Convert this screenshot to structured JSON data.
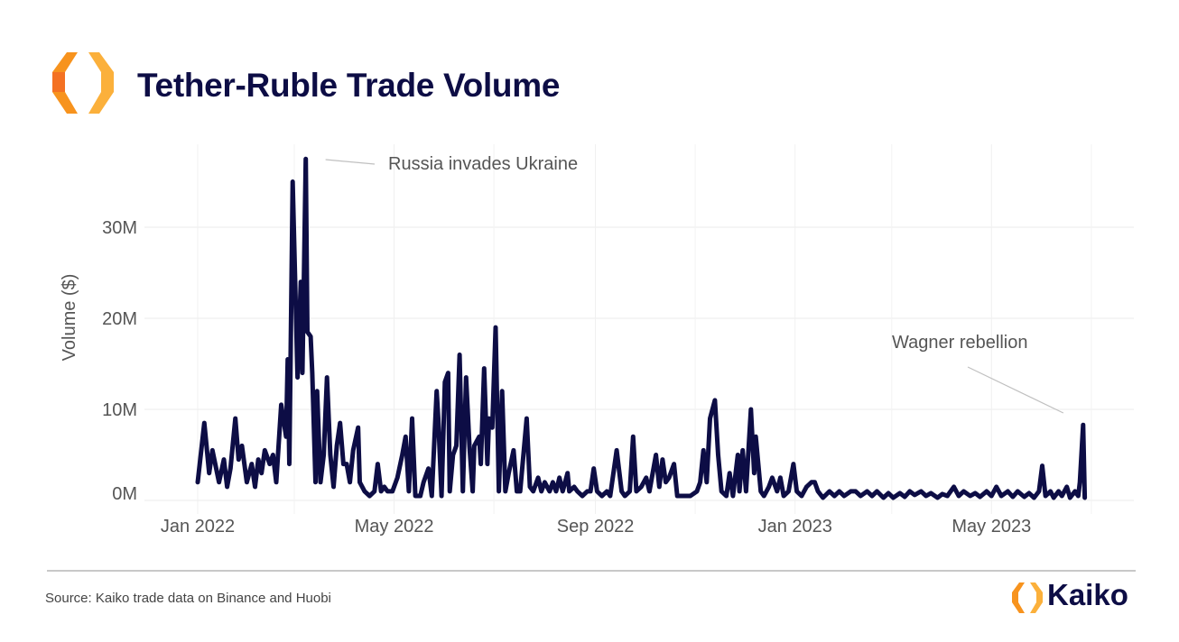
{
  "header": {
    "title": "Tether-Ruble Trade Volume"
  },
  "footer": {
    "source": "Source: Kaiko trade data on Binance and Huobi",
    "brand": "Kaiko"
  },
  "colors": {
    "line": "#0d0d45",
    "title": "#0d0d45",
    "logo_orange": "#f7931e",
    "logo_yellow": "#fbb03b",
    "annotation_line": "#c0c0c0"
  },
  "chart_data": {
    "type": "line",
    "title": "Tether-Ruble Trade Volume",
    "xlabel": "",
    "ylabel": "Volume ($)",
    "ylim": [
      0,
      37.5
    ],
    "y_unit": "M USD",
    "grid": "horizontal",
    "yticks": [
      {
        "value": 0,
        "label": "0M"
      },
      {
        "value": 10,
        "label": "10M"
      },
      {
        "value": 20,
        "label": "20M"
      },
      {
        "value": 30,
        "label": "30M"
      }
    ],
    "xticks": [
      {
        "value": "2022-01-01",
        "label": "Jan 2022"
      },
      {
        "value": "2022-05-01",
        "label": "May 2022"
      },
      {
        "value": "2022-09-01",
        "label": "Sep 2022"
      },
      {
        "value": "2023-01-01",
        "label": "Jan 2023"
      },
      {
        "value": "2023-05-01",
        "label": "May 2023"
      }
    ],
    "annotations": [
      {
        "text": "Russia invades Ukraine",
        "date": "2022-03-08",
        "value": 37.5
      },
      {
        "text": "Wagner rebellion",
        "date": "2023-06-26",
        "value": 8.3
      }
    ],
    "series": [
      {
        "points": [
          [
            "2022-01-01",
            2
          ],
          [
            "2022-01-05",
            8.5
          ],
          [
            "2022-01-08",
            3
          ],
          [
            "2022-01-10",
            5.5
          ],
          [
            "2022-01-14",
            2
          ],
          [
            "2022-01-17",
            4.5
          ],
          [
            "2022-01-19",
            1.5
          ],
          [
            "2022-01-21",
            3.5
          ],
          [
            "2022-01-24",
            9
          ],
          [
            "2022-01-26",
            4.5
          ],
          [
            "2022-01-28",
            6
          ],
          [
            "2022-01-31",
            2
          ],
          [
            "2022-02-03",
            4
          ],
          [
            "2022-02-05",
            1.5
          ],
          [
            "2022-02-07",
            4.5
          ],
          [
            "2022-02-09",
            3
          ],
          [
            "2022-02-11",
            5.5
          ],
          [
            "2022-02-14",
            4
          ],
          [
            "2022-02-16",
            5
          ],
          [
            "2022-02-18",
            2
          ],
          [
            "2022-02-21",
            10.5
          ],
          [
            "2022-02-24",
            7
          ],
          [
            "2022-02-25",
            15.5
          ],
          [
            "2022-02-26",
            4
          ],
          [
            "2022-02-28",
            35
          ],
          [
            "2022-03-03",
            13.5
          ],
          [
            "2022-03-05",
            24
          ],
          [
            "2022-03-06",
            14
          ],
          [
            "2022-03-08",
            37.5
          ],
          [
            "2022-03-09",
            18.5
          ],
          [
            "2022-03-11",
            18
          ],
          [
            "2022-03-12",
            14
          ],
          [
            "2022-03-14",
            2
          ],
          [
            "2022-03-15",
            12
          ],
          [
            "2022-03-17",
            2
          ],
          [
            "2022-03-19",
            5
          ],
          [
            "2022-03-21",
            13.5
          ],
          [
            "2022-03-23",
            5
          ],
          [
            "2022-03-25",
            1.5
          ],
          [
            "2022-03-27",
            6
          ],
          [
            "2022-03-29",
            8.5
          ],
          [
            "2022-03-31",
            4
          ],
          [
            "2022-04-02",
            4
          ],
          [
            "2022-04-04",
            2
          ],
          [
            "2022-04-06",
            5.5
          ],
          [
            "2022-04-09",
            8
          ],
          [
            "2022-04-10",
            2
          ],
          [
            "2022-04-13",
            1
          ],
          [
            "2022-04-16",
            0.5
          ],
          [
            "2022-04-19",
            1
          ],
          [
            "2022-04-21",
            4
          ],
          [
            "2022-04-23",
            1
          ],
          [
            "2022-04-25",
            1.5
          ],
          [
            "2022-04-27",
            1
          ],
          [
            "2022-04-30",
            1
          ],
          [
            "2022-05-03",
            2.5
          ],
          [
            "2022-05-06",
            5
          ],
          [
            "2022-05-08",
            7
          ],
          [
            "2022-05-10",
            1
          ],
          [
            "2022-05-12",
            9
          ],
          [
            "2022-05-14",
            0.5
          ],
          [
            "2022-05-17",
            0.5
          ],
          [
            "2022-05-19",
            2
          ],
          [
            "2022-05-22",
            3.5
          ],
          [
            "2022-05-24",
            0.5
          ],
          [
            "2022-05-27",
            12
          ],
          [
            "2022-05-28",
            9
          ],
          [
            "2022-05-30",
            0.5
          ],
          [
            "2022-06-01",
            13
          ],
          [
            "2022-06-03",
            14
          ],
          [
            "2022-06-04",
            1
          ],
          [
            "2022-06-06",
            5
          ],
          [
            "2022-06-08",
            6
          ],
          [
            "2022-06-10",
            16
          ],
          [
            "2022-06-12",
            1
          ],
          [
            "2022-06-14",
            13.5
          ],
          [
            "2022-06-16",
            6
          ],
          [
            "2022-06-18",
            1
          ],
          [
            "2022-06-19",
            6
          ],
          [
            "2022-06-22",
            7
          ],
          [
            "2022-06-23",
            4
          ],
          [
            "2022-06-25",
            14.5
          ],
          [
            "2022-06-27",
            4
          ],
          [
            "2022-06-28",
            9
          ],
          [
            "2022-06-30",
            8
          ],
          [
            "2022-07-02",
            19
          ],
          [
            "2022-07-04",
            1
          ],
          [
            "2022-07-06",
            12
          ],
          [
            "2022-07-08",
            1
          ],
          [
            "2022-07-10",
            3
          ],
          [
            "2022-07-13",
            5.5
          ],
          [
            "2022-07-15",
            1
          ],
          [
            "2022-07-17",
            1
          ],
          [
            "2022-07-21",
            9
          ],
          [
            "2022-07-23",
            1.5
          ],
          [
            "2022-07-25",
            1
          ],
          [
            "2022-07-28",
            2.5
          ],
          [
            "2022-07-30",
            1
          ],
          [
            "2022-08-01",
            2
          ],
          [
            "2022-08-04",
            1
          ],
          [
            "2022-08-06",
            2
          ],
          [
            "2022-08-08",
            1
          ],
          [
            "2022-08-10",
            2.5
          ],
          [
            "2022-08-12",
            1
          ],
          [
            "2022-08-15",
            3
          ],
          [
            "2022-08-16",
            1
          ],
          [
            "2022-08-19",
            1.5
          ],
          [
            "2022-08-21",
            1
          ],
          [
            "2022-08-24",
            0.5
          ],
          [
            "2022-08-27",
            1
          ],
          [
            "2022-08-29",
            1
          ],
          [
            "2022-08-31",
            3.5
          ],
          [
            "2022-09-02",
            1
          ],
          [
            "2022-09-05",
            0.5
          ],
          [
            "2022-09-08",
            1
          ],
          [
            "2022-09-10",
            0.5
          ],
          [
            "2022-09-14",
            5.5
          ],
          [
            "2022-09-17",
            1
          ],
          [
            "2022-09-19",
            0.5
          ],
          [
            "2022-09-22",
            1
          ],
          [
            "2022-09-24",
            7
          ],
          [
            "2022-09-26",
            1
          ],
          [
            "2022-09-29",
            1.5
          ],
          [
            "2022-10-02",
            2.5
          ],
          [
            "2022-10-04",
            1
          ],
          [
            "2022-10-06",
            3
          ],
          [
            "2022-10-08",
            5
          ],
          [
            "2022-10-10",
            1.5
          ],
          [
            "2022-10-12",
            4.5
          ],
          [
            "2022-10-14",
            2
          ],
          [
            "2022-10-16",
            2.5
          ],
          [
            "2022-10-19",
            4
          ],
          [
            "2022-10-21",
            0.5
          ],
          [
            "2022-10-25",
            0.5
          ],
          [
            "2022-10-29",
            0.5
          ],
          [
            "2022-11-02",
            1
          ],
          [
            "2022-11-04",
            2
          ],
          [
            "2022-11-06",
            5.5
          ],
          [
            "2022-11-08",
            2
          ],
          [
            "2022-11-10",
            9
          ],
          [
            "2022-11-13",
            11
          ],
          [
            "2022-11-15",
            5
          ],
          [
            "2022-11-17",
            1
          ],
          [
            "2022-11-20",
            0.5
          ],
          [
            "2022-11-22",
            3
          ],
          [
            "2022-11-24",
            0.5
          ],
          [
            "2022-11-27",
            5
          ],
          [
            "2022-11-28",
            1
          ],
          [
            "2022-11-30",
            5.5
          ],
          [
            "2022-12-02",
            1
          ],
          [
            "2022-12-05",
            10
          ],
          [
            "2022-12-07",
            3
          ],
          [
            "2022-12-08",
            7
          ],
          [
            "2022-12-11",
            1
          ],
          [
            "2022-12-13",
            0.5
          ],
          [
            "2022-12-16",
            1.5
          ],
          [
            "2022-12-18",
            2.5
          ],
          [
            "2022-12-21",
            1
          ],
          [
            "2022-12-23",
            2.5
          ],
          [
            "2022-12-25",
            0.5
          ],
          [
            "2022-12-28",
            1
          ],
          [
            "2022-12-31",
            4
          ],
          [
            "2023-01-02",
            1
          ],
          [
            "2023-01-05",
            0.5
          ],
          [
            "2023-01-08",
            1.5
          ],
          [
            "2023-01-11",
            2
          ],
          [
            "2023-01-13",
            2
          ],
          [
            "2023-01-15",
            1
          ],
          [
            "2023-01-18",
            0.3
          ],
          [
            "2023-01-22",
            1
          ],
          [
            "2023-01-25",
            0.5
          ],
          [
            "2023-01-28",
            1
          ],
          [
            "2023-01-31",
            0.5
          ],
          [
            "2023-02-04",
            1
          ],
          [
            "2023-02-07",
            1
          ],
          [
            "2023-02-10",
            0.5
          ],
          [
            "2023-02-14",
            1
          ],
          [
            "2023-02-17",
            0.5
          ],
          [
            "2023-02-20",
            1
          ],
          [
            "2023-02-24",
            0.3
          ],
          [
            "2023-02-27",
            0.8
          ],
          [
            "2023-03-02",
            0.3
          ],
          [
            "2023-03-06",
            0.8
          ],
          [
            "2023-03-09",
            0.4
          ],
          [
            "2023-03-12",
            1
          ],
          [
            "2023-03-15",
            0.6
          ],
          [
            "2023-03-19",
            1
          ],
          [
            "2023-03-22",
            0.5
          ],
          [
            "2023-03-25",
            0.8
          ],
          [
            "2023-03-29",
            0.3
          ],
          [
            "2023-04-01",
            0.7
          ],
          [
            "2023-04-04",
            0.5
          ],
          [
            "2023-04-08",
            1.5
          ],
          [
            "2023-04-11",
            0.5
          ],
          [
            "2023-04-14",
            1
          ],
          [
            "2023-04-18",
            0.5
          ],
          [
            "2023-04-21",
            0.8
          ],
          [
            "2023-04-24",
            0.4
          ],
          [
            "2023-04-28",
            1
          ],
          [
            "2023-05-01",
            0.5
          ],
          [
            "2023-05-04",
            1.5
          ],
          [
            "2023-05-07",
            0.5
          ],
          [
            "2023-05-11",
            1
          ],
          [
            "2023-05-14",
            0.4
          ],
          [
            "2023-05-17",
            1
          ],
          [
            "2023-05-21",
            0.4
          ],
          [
            "2023-05-24",
            0.8
          ],
          [
            "2023-05-27",
            0.3
          ],
          [
            "2023-05-30",
            1
          ],
          [
            "2023-06-01",
            3.8
          ],
          [
            "2023-06-03",
            0.5
          ],
          [
            "2023-06-06",
            1
          ],
          [
            "2023-06-08",
            0.3
          ],
          [
            "2023-06-11",
            1
          ],
          [
            "2023-06-13",
            0.5
          ],
          [
            "2023-06-16",
            1.5
          ],
          [
            "2023-06-18",
            0.3
          ],
          [
            "2023-06-21",
            1
          ],
          [
            "2023-06-23",
            0.5
          ],
          [
            "2023-06-24",
            2
          ],
          [
            "2023-06-26",
            8.3
          ],
          [
            "2023-06-27",
            0.3
          ]
        ]
      }
    ]
  }
}
